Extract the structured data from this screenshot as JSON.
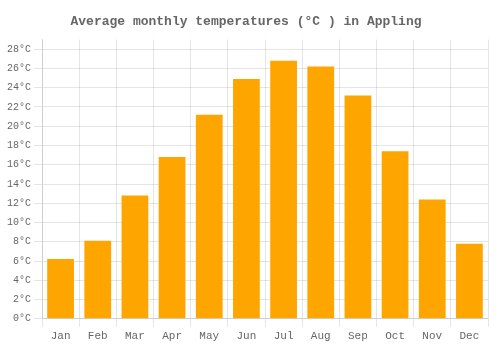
{
  "chart_data": {
    "type": "bar",
    "title": "Average monthly temperatures (°C ) in Appling",
    "categories": [
      "Jan",
      "Feb",
      "Mar",
      "Apr",
      "May",
      "Jun",
      "Jul",
      "Aug",
      "Sep",
      "Oct",
      "Nov",
      "Dec"
    ],
    "values": [
      6.2,
      8.1,
      12.8,
      16.8,
      21.2,
      24.9,
      26.8,
      26.2,
      23.2,
      17.4,
      12.4,
      7.8
    ],
    "color": "#FFA500",
    "ylim": [
      0,
      29
    ],
    "yticks": [
      {
        "value": 0,
        "label": "0°C"
      },
      {
        "value": 2,
        "label": "2°C"
      },
      {
        "value": 4,
        "label": "4°C"
      },
      {
        "value": 6,
        "label": "6°C"
      },
      {
        "value": 8,
        "label": "8°C"
      },
      {
        "value": 10,
        "label": "10°C"
      },
      {
        "value": 12,
        "label": "12°C"
      },
      {
        "value": 14,
        "label": "14°C"
      },
      {
        "value": 16,
        "label": "16°C"
      },
      {
        "value": 18,
        "label": "18°C"
      },
      {
        "value": 20,
        "label": "20°C"
      },
      {
        "value": 22,
        "label": "22°C"
      },
      {
        "value": 24,
        "label": "24°C"
      },
      {
        "value": 26,
        "label": "26°C"
      },
      {
        "value": 28,
        "label": "28°C"
      }
    ],
    "grid": true
  }
}
